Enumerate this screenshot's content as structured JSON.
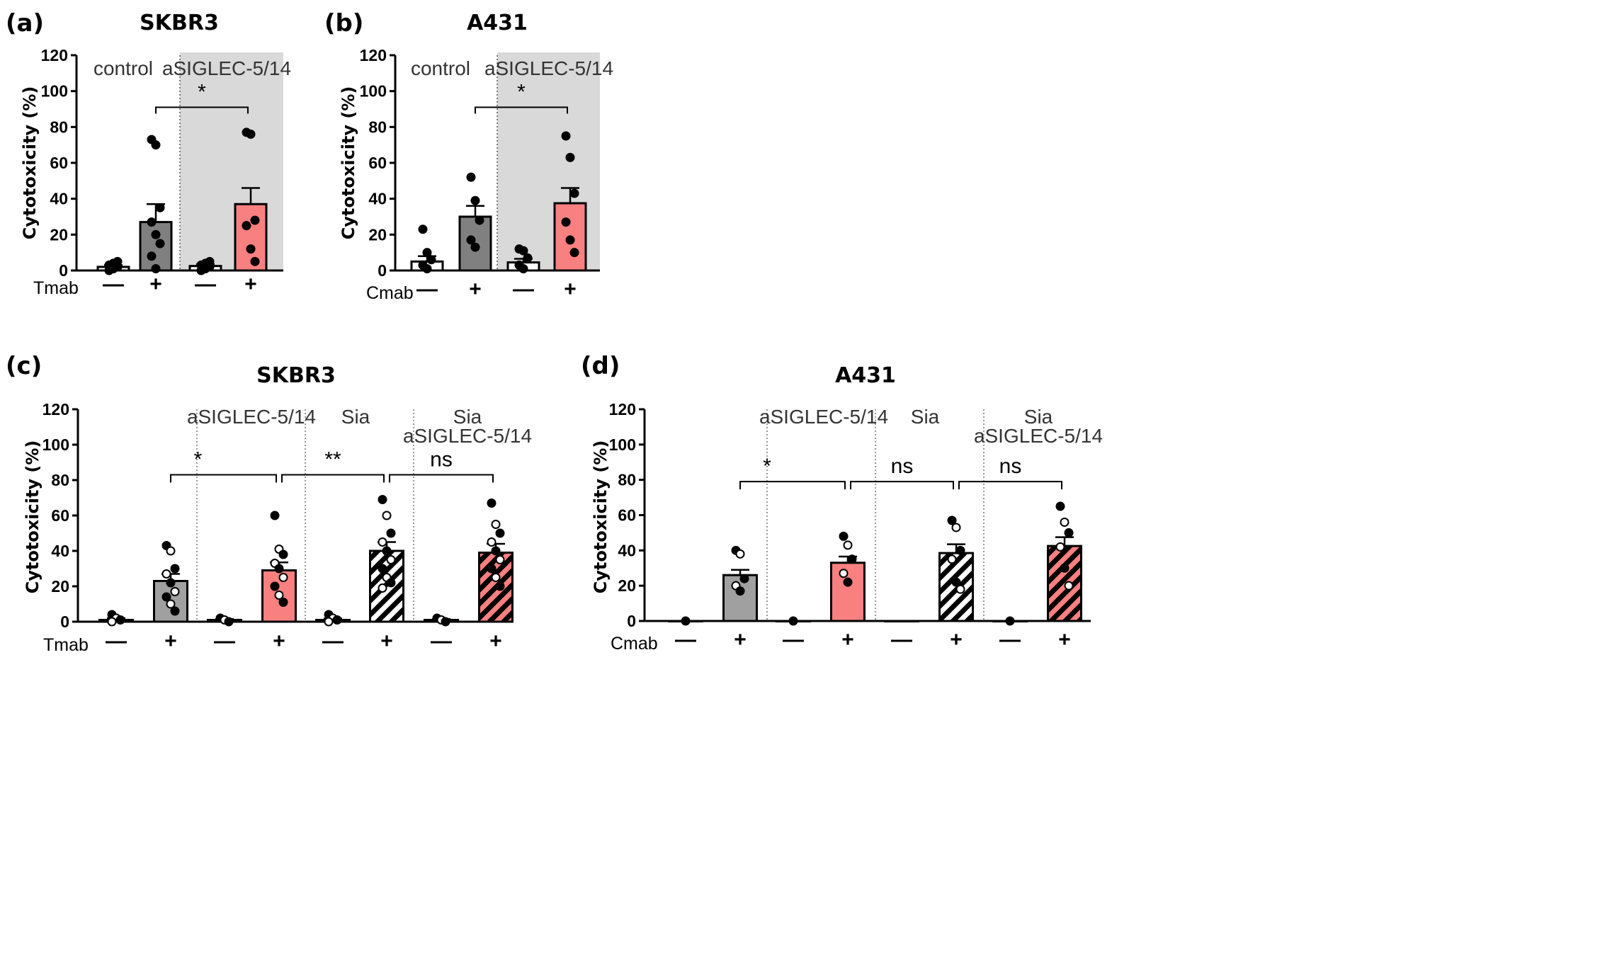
{
  "chart_data": [
    {
      "type": "bar",
      "panel": "(a)",
      "title": "SKBR3",
      "ylabel": "Cytotoxicity (%)",
      "ylim": [
        0,
        120
      ],
      "yticks": [
        "0",
        "20",
        "40",
        "60",
        "80",
        "100",
        "120"
      ],
      "treatment_label": "Tmab",
      "treatment_signs": [
        "—",
        "+",
        "—",
        "+"
      ],
      "groups": [
        {
          "label": "control",
          "shaded": false
        },
        {
          "label": "aSIGLEC-5/14",
          "shaded": true
        }
      ],
      "bars": [
        {
          "value": 2,
          "sem": 1,
          "fill": "#ffffff",
          "points": [
            0,
            1,
            2,
            3,
            4,
            5
          ]
        },
        {
          "value": 27,
          "sem": 10,
          "fill": "#808080",
          "points": [
            73,
            70,
            35,
            27,
            20,
            15,
            8,
            1
          ]
        },
        {
          "value": 2.5,
          "sem": 1,
          "fill": "#ffffff",
          "points": [
            0,
            1,
            2,
            3,
            4,
            5
          ]
        },
        {
          "value": 37,
          "sem": 9,
          "fill": "#f88080",
          "points": [
            77,
            76,
            28,
            25,
            12,
            5
          ]
        }
      ],
      "comparisons": [
        {
          "from": 1,
          "to": 3,
          "label": "*",
          "y": 91
        }
      ]
    },
    {
      "type": "bar",
      "panel": "(b)",
      "title": "A431",
      "ylabel": "Cytotoxicity (%)",
      "ylim": [
        0,
        120
      ],
      "yticks": [
        "0",
        "20",
        "40",
        "60",
        "80",
        "100",
        "120"
      ],
      "treatment_label": "Cmab",
      "treatment_signs": [
        "—",
        "+",
        "—",
        "+"
      ],
      "groups": [
        {
          "label": "control",
          "shaded": false
        },
        {
          "label": "aSIGLEC-5/14",
          "shaded": true
        }
      ],
      "bars": [
        {
          "value": 5,
          "sem": 3,
          "fill": "#ffffff",
          "points": [
            23,
            10,
            6,
            3,
            1
          ]
        },
        {
          "value": 30,
          "sem": 6,
          "fill": "#808080",
          "points": [
            52,
            39,
            28,
            17,
            13
          ]
        },
        {
          "value": 4.5,
          "sem": 2,
          "fill": "#ffffff",
          "points": [
            12,
            11,
            7,
            3,
            1
          ]
        },
        {
          "value": 37.5,
          "sem": 8.5,
          "fill": "#f88080",
          "points": [
            75,
            63,
            43,
            27,
            17,
            10
          ]
        }
      ],
      "comparisons": [
        {
          "from": 1,
          "to": 3,
          "label": "*",
          "y": 91
        }
      ]
    },
    {
      "type": "bar",
      "panel": "(c)",
      "title": "SKBR3",
      "ylabel": "Cytotoxicity (%)",
      "ylim": [
        0,
        120
      ],
      "yticks": [
        "0",
        "20",
        "40",
        "60",
        "80",
        "100",
        "120"
      ],
      "treatment_label": "Tmab",
      "treatment_signs": [
        "—",
        "+",
        "—",
        "+",
        "—",
        "+",
        "—",
        "+"
      ],
      "groups": [
        {
          "label": "",
          "label2": ""
        },
        {
          "label": "aSIGLEC-5/14",
          "label2": ""
        },
        {
          "label": "Sia",
          "label2": ""
        },
        {
          "label": "Sia",
          "label2": "aSIGLEC-5/14"
        }
      ],
      "bars": [
        {
          "value": 1,
          "sem": 1,
          "fill": "#ffffff",
          "hatch": false,
          "points": [
            4,
            2,
            1,
            0
          ]
        },
        {
          "value": 23,
          "sem": 4,
          "fill": "#a0a0a0",
          "hatch": false,
          "points": [
            43,
            40,
            30,
            27,
            22,
            17,
            14,
            10,
            6
          ]
        },
        {
          "value": 1,
          "sem": 0.5,
          "fill": "#ffffff",
          "hatch": false,
          "points": [
            2,
            1,
            0
          ]
        },
        {
          "value": 29,
          "sem": 4.5,
          "fill": "#f88080",
          "hatch": false,
          "points": [
            60,
            41,
            38,
            33,
            30,
            25,
            20,
            15,
            11
          ]
        },
        {
          "value": 1,
          "sem": 0.8,
          "fill": "#ffffff",
          "hatch": false,
          "points": [
            4,
            2,
            1,
            0
          ]
        },
        {
          "value": 40,
          "sem": 5,
          "fill": "#ffffff",
          "hatch": true,
          "points": [
            69,
            60,
            50,
            45,
            40,
            35,
            30,
            25,
            22,
            19
          ]
        },
        {
          "value": 1,
          "sem": 0.5,
          "fill": "#ffffff",
          "hatch": false,
          "points": [
            2,
            1,
            0
          ]
        },
        {
          "value": 39,
          "sem": 5,
          "fill": "#f88080",
          "hatch": true,
          "points": [
            67,
            55,
            50,
            45,
            40,
            35,
            30,
            25,
            20
          ]
        }
      ],
      "comparisons": [
        {
          "from": 1,
          "to": 3,
          "label": "*",
          "y": 83
        },
        {
          "from": 3,
          "to": 5,
          "label": "**",
          "y": 83
        },
        {
          "from": 5,
          "to": 7,
          "label": "ns",
          "y": 83
        }
      ]
    },
    {
      "type": "bar",
      "panel": "(d)",
      "title": "A431",
      "ylabel": "Cytotoxicity (%)",
      "ylim": [
        0,
        120
      ],
      "yticks": [
        "0",
        "20",
        "40",
        "60",
        "80",
        "100",
        "120"
      ],
      "treatment_label": "Cmab",
      "treatment_signs": [
        "—",
        "+",
        "—",
        "+",
        "—",
        "+",
        "—",
        "+"
      ],
      "groups": [
        {
          "label": "",
          "label2": ""
        },
        {
          "label": "aSIGLEC-5/14",
          "label2": ""
        },
        {
          "label": "Sia",
          "label2": ""
        },
        {
          "label": "Sia",
          "label2": "aSIGLEC-5/14"
        }
      ],
      "bars": [
        {
          "value": 0,
          "sem": 0,
          "fill": "#ffffff",
          "hatch": false,
          "points": [
            0
          ]
        },
        {
          "value": 26,
          "sem": 3,
          "fill": "#a0a0a0",
          "hatch": false,
          "points": [
            40,
            38,
            24,
            20,
            17
          ]
        },
        {
          "value": 0,
          "sem": 0,
          "fill": "#ffffff",
          "hatch": false,
          "points": [
            0
          ]
        },
        {
          "value": 33,
          "sem": 3.5,
          "fill": "#f88080",
          "hatch": false,
          "points": [
            48,
            43,
            35,
            27,
            22
          ]
        },
        {
          "value": 0,
          "sem": 0,
          "fill": "#ffffff",
          "hatch": false,
          "points": []
        },
        {
          "value": 38.5,
          "sem": 5,
          "fill": "#ffffff",
          "hatch": true,
          "points": [
            57,
            53,
            40,
            35,
            22,
            18
          ]
        },
        {
          "value": 0,
          "sem": 0,
          "fill": "#ffffff",
          "hatch": false,
          "points": [
            0
          ]
        },
        {
          "value": 42.5,
          "sem": 5,
          "fill": "#f88080",
          "hatch": true,
          "points": [
            65,
            56,
            50,
            42,
            30,
            20
          ]
        }
      ],
      "comparisons": [
        {
          "from": 1,
          "to": 3,
          "label": "*",
          "y": 79
        },
        {
          "from": 3,
          "to": 5,
          "label": "ns",
          "y": 79
        },
        {
          "from": 5,
          "to": 7,
          "label": "ns",
          "y": 79
        }
      ]
    }
  ]
}
